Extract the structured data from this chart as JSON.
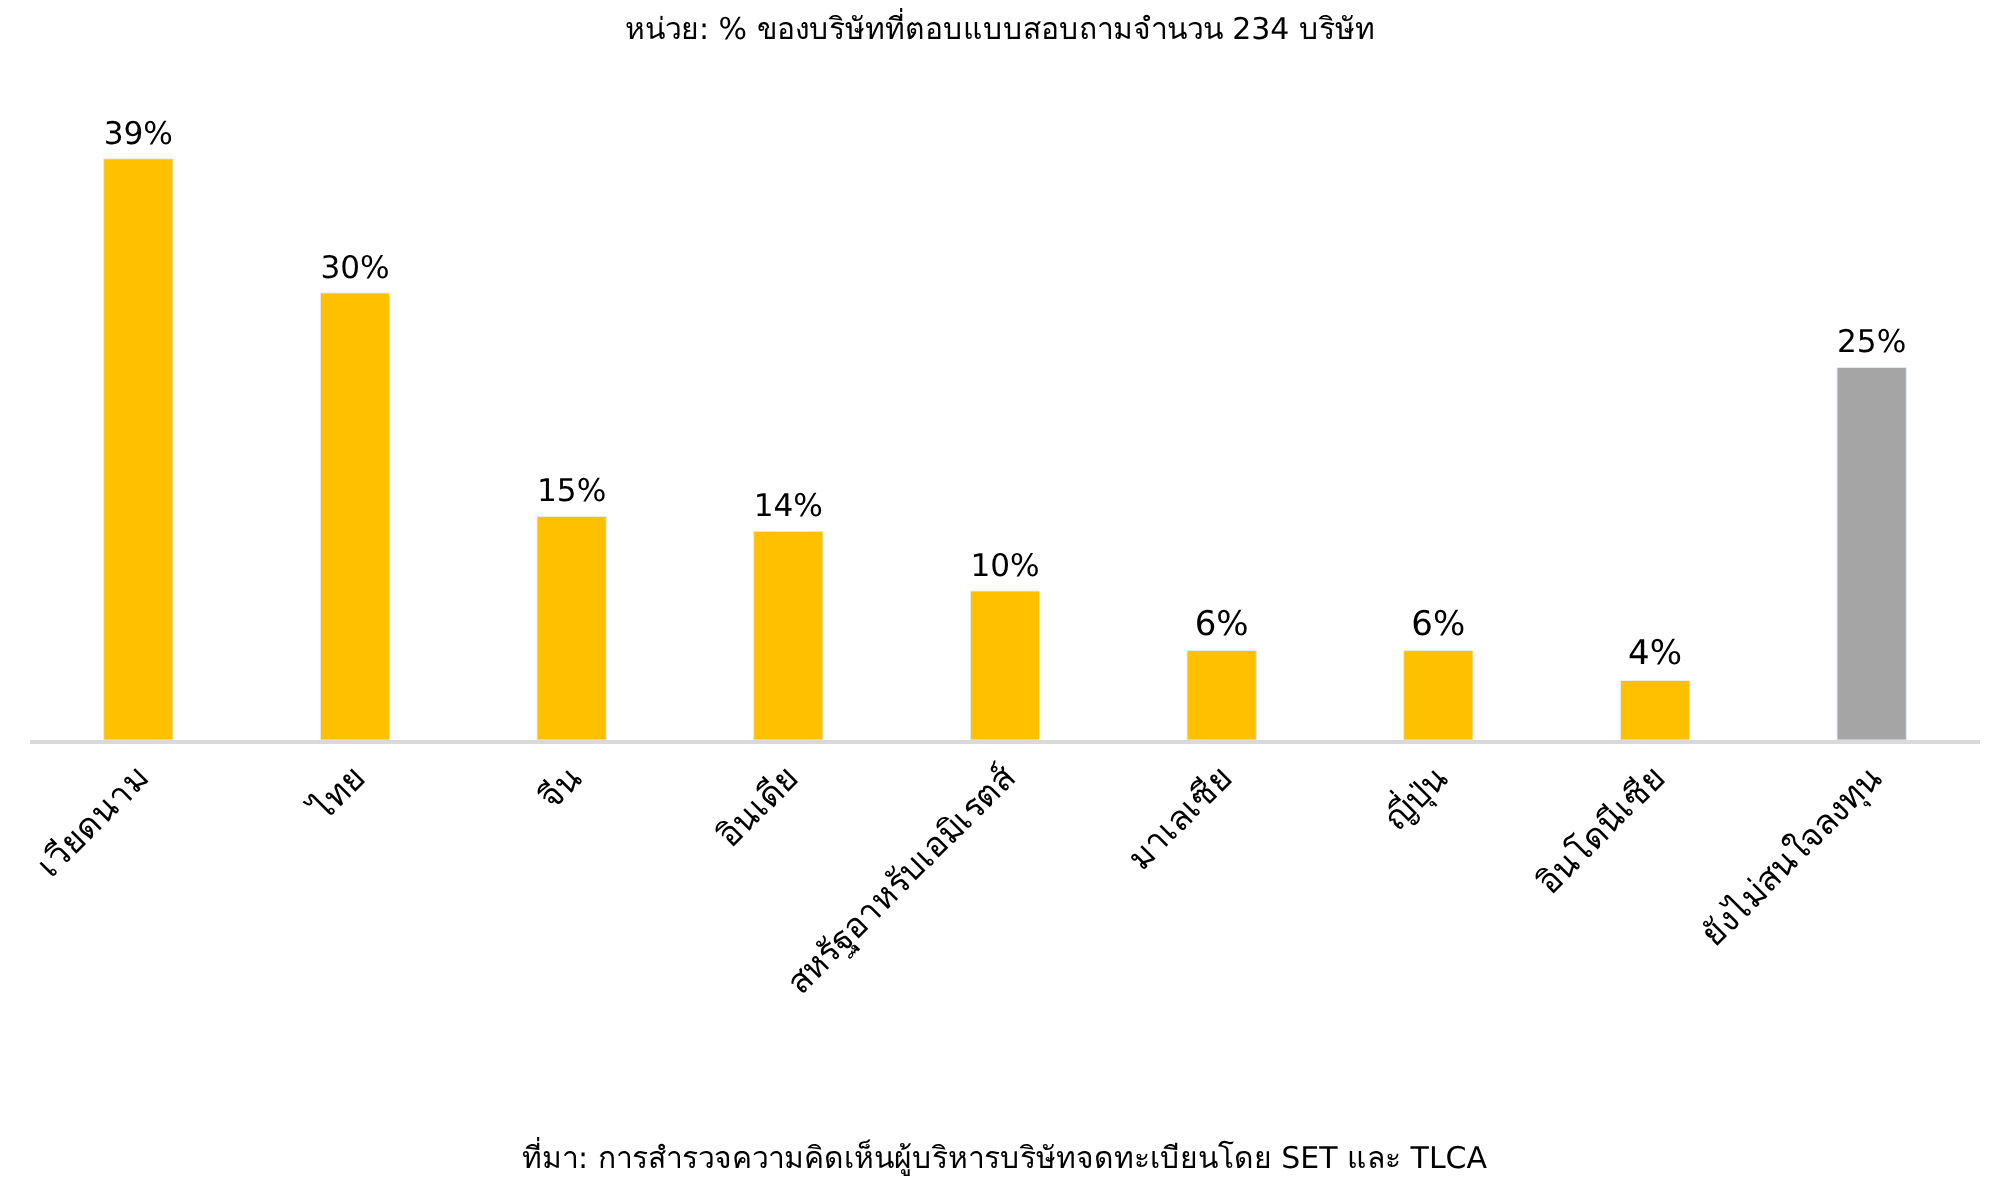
{
  "chart_data": {
    "type": "bar",
    "title": "หน่วย: % ของบริษัทที่ตอบแบบสอบถามจำนวน 234 บริษัท",
    "categories": [
      "เวียดนาม",
      "ไทย",
      "จีน",
      "อินเดีย",
      "สหรัฐอาหรับเอมิเรตส์",
      "มาเลเซีย",
      "ญี่ปุ่น",
      "อินโดนีเซีย",
      "ยังไม่สนใจลงทุน"
    ],
    "values": [
      39,
      30,
      15,
      14,
      10,
      6,
      6,
      4,
      25
    ],
    "value_labels": [
      "39%",
      "30%",
      "15%",
      "14%",
      "10%",
      "6%",
      "6%",
      "4%",
      "25%"
    ],
    "colors": [
      "#ffc000",
      "#ffc000",
      "#ffc000",
      "#ffc000",
      "#ffc000",
      "#ffc000",
      "#ffc000",
      "#ffc000",
      "#a5a5a5"
    ],
    "annotations": [
      "ที่มา: การสำรวจความคิดเห็นผู้บริหารบริษัทจดทะเบียนโดย SET และ TLCA"
    ],
    "legend": false
  }
}
